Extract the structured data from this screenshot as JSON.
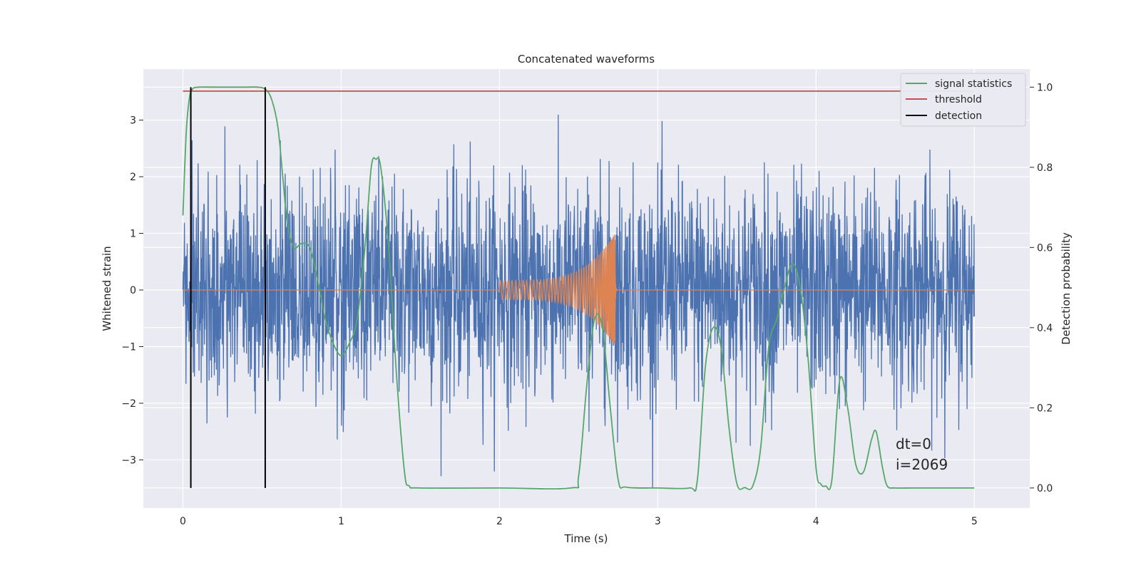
{
  "chart_data": {
    "type": "line",
    "title": "Concatenated waveforms",
    "xlabel": "Time (s)",
    "ylabel_left": "Whitened strain",
    "ylabel_right": "Detection probability",
    "xlim": [
      -0.25,
      5.35
    ],
    "ylim_left": [
      -3.85,
      3.9
    ],
    "ylim_right": [
      -0.05,
      1.045
    ],
    "x_ticks": [
      0,
      1,
      2,
      3,
      4,
      5
    ],
    "y_ticks_left": [
      -3,
      -2,
      -1,
      0,
      1,
      2,
      3
    ],
    "y_tick_labels_left": [
      "−3",
      "−2",
      "−1",
      "0",
      "1",
      "2",
      "3"
    ],
    "y_ticks_right": [
      0.0,
      0.2,
      0.4,
      0.6,
      0.8,
      1.0
    ],
    "y_tick_labels_right": [
      "0.0",
      "0.2",
      "0.4",
      "0.6",
      "0.8",
      "1.0"
    ],
    "grid": true,
    "legend_position": "top-right",
    "legend": [
      {
        "label": "signal statistics",
        "color": "#55a868"
      },
      {
        "label": "threshold",
        "color": "#c44e52"
      },
      {
        "label": "detection",
        "color": "#000000"
      }
    ],
    "colors": {
      "noise": "#4c72b0",
      "injected_waveform": "#dd8452",
      "signal_statistics": "#55a868",
      "threshold": "#c44e52",
      "detection": "#000000",
      "plot_background": "#eaeaf2",
      "grid": "#ffffff"
    },
    "series": [
      {
        "axis": "right",
        "x": [
          0.0,
          0.02,
          0.04,
          0.06,
          0.1,
          0.2,
          0.3,
          0.4,
          0.47,
          0.52,
          0.56,
          0.6,
          0.63,
          0.66,
          0.7,
          0.75,
          0.8,
          0.85,
          0.9,
          0.95,
          1.0,
          1.05,
          1.1,
          1.15,
          1.19,
          1.22,
          1.25,
          1.3,
          1.35,
          1.4,
          1.43,
          1.5,
          2.0,
          2.45,
          2.5,
          2.55,
          2.6,
          2.65,
          2.7,
          2.75,
          2.8,
          3.0,
          3.2,
          3.25,
          3.3,
          3.35,
          3.4,
          3.45,
          3.5,
          3.55,
          3.6,
          3.65,
          3.7,
          3.75,
          3.8,
          3.85,
          3.9,
          3.95,
          4.0,
          4.03,
          4.06,
          4.1,
          4.15,
          4.2,
          4.25,
          4.3,
          4.35,
          4.38,
          4.42,
          4.45,
          4.5,
          4.6,
          5.0
        ],
        "y": [
          0.68,
          0.88,
          0.97,
          0.995,
          1.0,
          1.0,
          1.0,
          1.0,
          1.0,
          0.995,
          0.97,
          0.9,
          0.78,
          0.66,
          0.6,
          0.61,
          0.6,
          0.52,
          0.42,
          0.36,
          0.33,
          0.36,
          0.42,
          0.6,
          0.8,
          0.82,
          0.8,
          0.6,
          0.28,
          0.04,
          0.005,
          0.0,
          0.0,
          0.0,
          0.03,
          0.25,
          0.42,
          0.4,
          0.2,
          0.02,
          0.002,
          0.0,
          0.0,
          0.02,
          0.3,
          0.4,
          0.35,
          0.15,
          0.01,
          0.001,
          0.005,
          0.1,
          0.35,
          0.42,
          0.5,
          0.56,
          0.5,
          0.32,
          0.05,
          0.01,
          0.005,
          0.02,
          0.27,
          0.2,
          0.06,
          0.04,
          0.12,
          0.14,
          0.05,
          0.005,
          0.0,
          0.0,
          0.0
        ],
        "color": "#55a868",
        "name": "signal statistics"
      },
      {
        "axis": "right",
        "x": [
          0.0,
          5.0
        ],
        "y": [
          0.99,
          0.99
        ],
        "color": "#c44e52",
        "name": "threshold"
      }
    ],
    "detections": {
      "x": [
        0.05,
        0.52
      ],
      "y_range": [
        0.0,
        1.0
      ],
      "color": "#000000"
    },
    "noise": {
      "x_range": [
        0.0,
        5.0
      ],
      "typical_amplitude": 0.7,
      "max_amplitude": 3.5,
      "color": "#4c72b0"
    },
    "injection": {
      "start": 2.0,
      "end": 2.73,
      "peak_amplitude": 1.0,
      "color": "#dd8452"
    },
    "annotations": [
      "dt=0",
      "i=2069"
    ]
  }
}
